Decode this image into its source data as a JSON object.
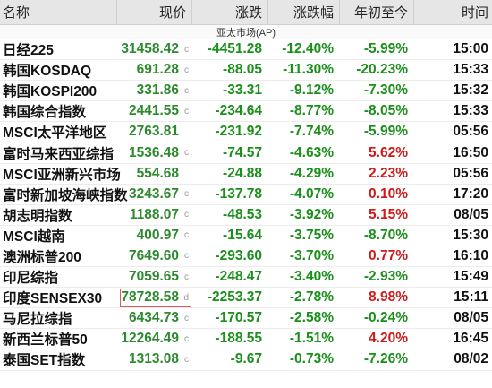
{
  "header": {
    "name": "名称",
    "price": "现价",
    "change": "涨跌",
    "change_pct": "涨跌幅",
    "ytd": "年初至今",
    "time": "时间"
  },
  "section_label": "亚太市场(AP)",
  "colors": {
    "up": "#d01818",
    "down": "#1a8f1a",
    "highlight": "#e05a5a"
  },
  "rows": [
    {
      "name": "日经225",
      "price": "31458.42",
      "flag": "c",
      "change": "-4451.28",
      "change_pct": "-12.40%",
      "ytd": "-5.99%",
      "ytd_dir": "down",
      "time": "15:00"
    },
    {
      "name": "韩国KOSDAQ",
      "price": "691.28",
      "flag": "c",
      "change": "-88.05",
      "change_pct": "-11.30%",
      "ytd": "-20.23%",
      "ytd_dir": "down",
      "time": "15:33"
    },
    {
      "name": "韩国KOSPI200",
      "price": "331.86",
      "flag": "c",
      "change": "-33.31",
      "change_pct": "-9.12%",
      "ytd": "-7.30%",
      "ytd_dir": "down",
      "time": "15:32"
    },
    {
      "name": "韩国综合指数",
      "price": "2441.55",
      "flag": "c",
      "change": "-234.64",
      "change_pct": "-8.77%",
      "ytd": "-8.05%",
      "ytd_dir": "down",
      "time": "15:33"
    },
    {
      "name": "MSCI太平洋地区",
      "price": "2763.81",
      "flag": "",
      "change": "-231.92",
      "change_pct": "-7.74%",
      "ytd": "-5.99%",
      "ytd_dir": "down",
      "time": "05:56"
    },
    {
      "name": "富时马来西亚综指",
      "price": "1536.48",
      "flag": "c",
      "change": "-74.57",
      "change_pct": "-4.63%",
      "ytd": "5.62%",
      "ytd_dir": "up",
      "time": "16:50"
    },
    {
      "name": "MSCI亚洲新兴市场",
      "price": "554.68",
      "flag": "",
      "change": "-24.88",
      "change_pct": "-4.29%",
      "ytd": "2.23%",
      "ytd_dir": "up",
      "time": "05:56"
    },
    {
      "name": "富时新加坡海峡指数",
      "price": "3243.67",
      "flag": "c",
      "change": "-137.78",
      "change_pct": "-4.07%",
      "ytd": "0.10%",
      "ytd_dir": "up",
      "time": "17:20"
    },
    {
      "name": "胡志明指数",
      "price": "1188.07",
      "flag": "c",
      "change": "-48.53",
      "change_pct": "-3.92%",
      "ytd": "5.15%",
      "ytd_dir": "up",
      "time": "08/05"
    },
    {
      "name": "MSCI越南",
      "price": "400.97",
      "flag": "c",
      "change": "-15.64",
      "change_pct": "-3.75%",
      "ytd": "-8.70%",
      "ytd_dir": "down",
      "time": "15:30"
    },
    {
      "name": "澳洲标普200",
      "price": "7649.60",
      "flag": "c",
      "change": "-293.60",
      "change_pct": "-3.70%",
      "ytd": "0.77%",
      "ytd_dir": "up",
      "time": "16:10"
    },
    {
      "name": "印尼综指",
      "price": "7059.65",
      "flag": "c",
      "change": "-248.47",
      "change_pct": "-3.40%",
      "ytd": "-2.93%",
      "ytd_dir": "down",
      "time": "15:49"
    },
    {
      "name": "印度SENSEX30",
      "price": "78728.58",
      "flag": "d",
      "change": "-2253.37",
      "change_pct": "-2.78%",
      "ytd": "8.98%",
      "ytd_dir": "up",
      "time": "15:11",
      "highlighted": true
    },
    {
      "name": "马尼拉综指",
      "price": "6434.73",
      "flag": "c",
      "change": "-170.57",
      "change_pct": "-2.58%",
      "ytd": "-0.24%",
      "ytd_dir": "down",
      "time": "08/05"
    },
    {
      "name": "新西兰标普50",
      "price": "12264.49",
      "flag": "c",
      "change": "-188.55",
      "change_pct": "-1.51%",
      "ytd": "4.20%",
      "ytd_dir": "up",
      "time": "16:45"
    },
    {
      "name": "泰国SET指数",
      "price": "1313.08",
      "flag": "c",
      "change": "-9.67",
      "change_pct": "-0.73%",
      "ytd": "-7.26%",
      "ytd_dir": "down",
      "time": "08/02"
    }
  ]
}
